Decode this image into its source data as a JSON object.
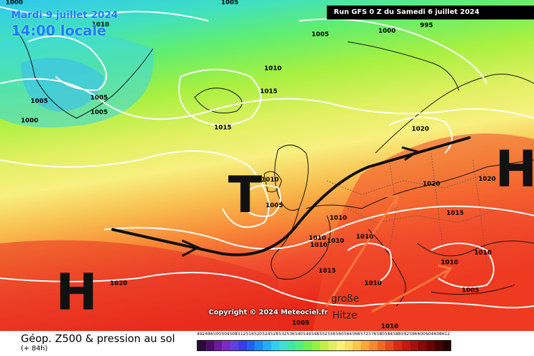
{
  "header": {
    "date": "Mardi 9 juillet 2024",
    "time": "14:00 locale",
    "run": "Run GFS 0 Z du Samedi 6 juillet 2024"
  },
  "copyright": "Copyright © 2024 Meteociel.fr",
  "footer": {
    "title": "Géop. Z500 & pression au sol",
    "subtitle": "(+ 84h)"
  },
  "symbols": {
    "high_west": "H",
    "high_east": "H",
    "low_center": "T"
  },
  "annotation": [
    "große",
    "Hitze"
  ],
  "isobar_labels": [
    "1005",
    "1010",
    "1005",
    "1000",
    "995",
    "1000",
    "1005",
    "1005",
    "1005",
    "1000",
    "1010",
    "1015",
    "1015",
    "1020",
    "1010",
    "1005",
    "1020",
    "1020",
    "1010",
    "1015",
    "1010",
    "1010",
    "1010",
    "1010",
    "1015",
    "1010",
    "1020",
    "1010",
    "1010",
    "1005",
    "1010",
    "1005"
  ],
  "scale": {
    "values": [
      "492",
      "496",
      "500",
      "504",
      "508",
      "512",
      "516",
      "520",
      "524",
      "528",
      "532",
      "536",
      "540",
      "544",
      "548",
      "552",
      "556",
      "560",
      "564",
      "568",
      "572",
      "576",
      "580",
      "584",
      "588",
      "592",
      "596",
      "600",
      "604",
      "608",
      "612"
    ],
    "colors": [
      "#2a0a3a",
      "#4a0e6a",
      "#6a1a9a",
      "#7a2ac8",
      "#6040e0",
      "#3a3af0",
      "#2060f0",
      "#1a8af8",
      "#20b0f8",
      "#30d0f0",
      "#40e0d0",
      "#40e8a8",
      "#50f080",
      "#70f050",
      "#98f040",
      "#c0f040",
      "#e0f060",
      "#f8f070",
      "#f8e060",
      "#f8c848",
      "#f8a838",
      "#f88830",
      "#f06828",
      "#e84820",
      "#d82818",
      "#c81810",
      "#a81010",
      "#880808",
      "#680404",
      "#480202",
      "#200000"
    ]
  }
}
